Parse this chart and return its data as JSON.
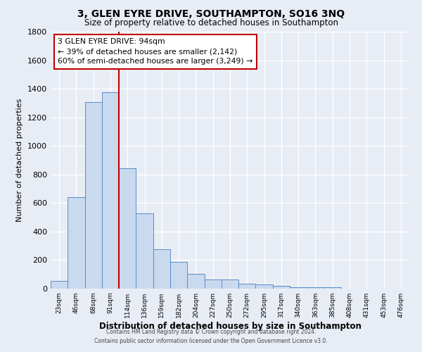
{
  "title1": "3, GLEN EYRE DRIVE, SOUTHAMPTON, SO16 3NQ",
  "title2": "Size of property relative to detached houses in Southampton",
  "xlabel": "Distribution of detached houses by size in Southampton",
  "ylabel": "Number of detached properties",
  "categories": [
    "23sqm",
    "46sqm",
    "68sqm",
    "91sqm",
    "114sqm",
    "136sqm",
    "159sqm",
    "182sqm",
    "204sqm",
    "227sqm",
    "250sqm",
    "272sqm",
    "295sqm",
    "317sqm",
    "340sqm",
    "363sqm",
    "385sqm",
    "408sqm",
    "431sqm",
    "453sqm",
    "476sqm"
  ],
  "values": [
    55,
    640,
    1305,
    1375,
    845,
    530,
    275,
    185,
    103,
    65,
    62,
    35,
    30,
    18,
    8,
    12,
    12,
    0,
    0,
    0,
    0
  ],
  "bar_color": "#c9d9ee",
  "bar_edge_color": "#5b8cc8",
  "vline_color": "#c00000",
  "annotation_title": "3 GLEN EYRE DRIVE: 94sqm",
  "annotation_line1": "← 39% of detached houses are smaller (2,142)",
  "annotation_line2": "60% of semi-detached houses are larger (3,249) →",
  "annotation_box_edge": "#c00000",
  "ylim": [
    0,
    1800
  ],
  "yticks": [
    0,
    200,
    400,
    600,
    800,
    1000,
    1200,
    1400,
    1600,
    1800
  ],
  "bg_color": "#e8edf5",
  "plot_bg_color": "#e8edf5",
  "grid_color": "#ffffff",
  "footer1": "Contains HM Land Registry data © Crown copyright and database right 2024.",
  "footer2": "Contains public sector information licensed under the Open Government Licence v3.0."
}
